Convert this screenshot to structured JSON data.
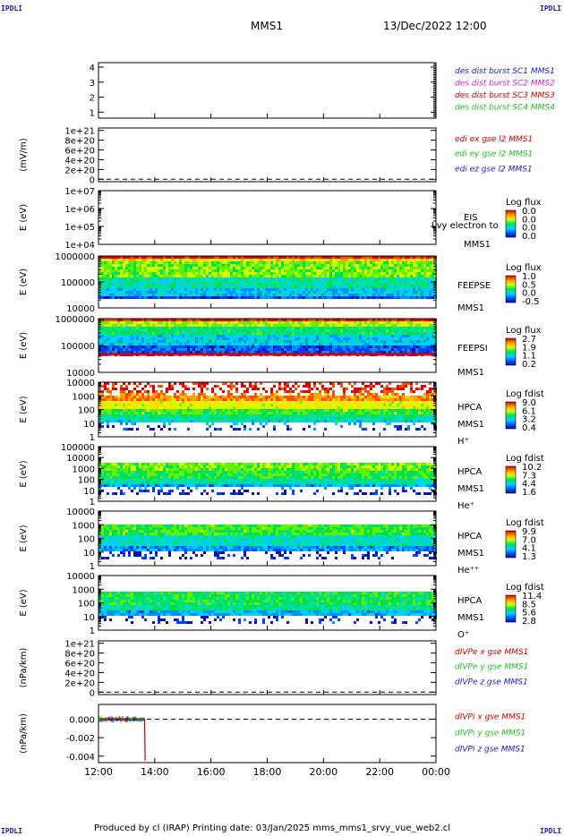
{
  "header": {
    "corner_label": "IPDLI",
    "spacecraft": "MMS1",
    "datetime": "13/Dec/2022 12:00"
  },
  "footer": {
    "text": "Produced by cl (IRAP)   Printing date: 03/Jan/2025   mms_mms1_srvy_vue_web2.cl"
  },
  "chart_data": [
    {
      "type": "line",
      "panel": "des_dist_burst",
      "ylabel": "",
      "yticks": [
        "1",
        "2",
        "3",
        "4"
      ],
      "ylim": [
        0.6,
        4.3
      ],
      "legend": [
        {
          "text": "des dist burst SC1 MMS1",
          "color": "#1a1acc"
        },
        {
          "text": "des dist burst SC2 MMS2",
          "color": "#cc22cc"
        },
        {
          "text": "des dist burst SC3 MMS3",
          "color": "#cc0000"
        },
        {
          "text": "des dist burst SC4 MMS4",
          "color": "#22bb22"
        }
      ],
      "series": []
    },
    {
      "type": "line",
      "panel": "edi_e",
      "ylabel": "(mV/m)",
      "yticks": [
        "0",
        "2e+20",
        "4e+20",
        "6e+20",
        "8e+20",
        "1e+21"
      ],
      "ylim": [
        -0.5,
        10.5
      ],
      "zero_line": true,
      "legend": [
        {
          "text": "edi ex gse l2 MMS1",
          "color": "#cc0000"
        },
        {
          "text": "edi ey gse l2 MMS1",
          "color": "#22bb22"
        },
        {
          "text": "edi ez gse l2 MMS1",
          "color": "#1a1acc"
        }
      ],
      "series": []
    },
    {
      "type": "heatmap",
      "panel": "eis",
      "ylabel": "E (eV)",
      "yticks": [
        "1e+04",
        "1e+05",
        "1e+06",
        "1e+07"
      ],
      "side_labels": [
        "EIS",
        "MMS1"
      ],
      "overlay_text": "Lvy electron to",
      "colorbar": {
        "title": "Log flux",
        "ticks": [
          "0.0",
          "0.0",
          "0.0",
          "0.0"
        ]
      }
    },
    {
      "type": "heatmap",
      "panel": "feepse",
      "ylabel": "E (eV)",
      "yticks": [
        "10000",
        "100000",
        "1000000"
      ],
      "side_labels": [
        "FEEPSE",
        "MMS1"
      ],
      "colorbar": {
        "title": "Log flux",
        "ticks": [
          "1.0",
          "0.5",
          "0.0",
          "-0.5"
        ]
      }
    },
    {
      "type": "heatmap",
      "panel": "feepsi",
      "ylabel": "E (eV)",
      "yticks": [
        "10000",
        "100000",
        "1000000"
      ],
      "side_labels": [
        "FEEPSI",
        "MMS1"
      ],
      "colorbar": {
        "title": "Log flux",
        "ticks": [
          "2.7",
          "1.9",
          "1.1",
          "0.2"
        ]
      }
    },
    {
      "type": "heatmap",
      "panel": "hpca_h",
      "ylabel": "E (eV)",
      "yticks": [
        "1",
        "10",
        "100",
        "1000",
        "10000"
      ],
      "side_labels": [
        "HPCA",
        "MMS1",
        "H⁺"
      ],
      "colorbar": {
        "title": "Log fdist",
        "ticks": [
          "9.0",
          "6.1",
          "3.2",
          "0.4"
        ]
      }
    },
    {
      "type": "heatmap",
      "panel": "hpca_he",
      "ylabel": "E (eV)",
      "yticks": [
        "1",
        "10",
        "100",
        "1000",
        "10000",
        "100000"
      ],
      "side_labels": [
        "HPCA",
        "MMS1",
        "He⁺"
      ],
      "colorbar": {
        "title": "Log fdist",
        "ticks": [
          "10.2",
          "7.3",
          "4.4",
          "1.6"
        ]
      }
    },
    {
      "type": "heatmap",
      "panel": "hpca_hepp",
      "ylabel": "E (eV)",
      "yticks": [
        "1",
        "10",
        "100",
        "1000",
        "10000"
      ],
      "side_labels": [
        "HPCA",
        "MMS1",
        "He⁺⁺"
      ],
      "colorbar": {
        "title": "Log fdist",
        "ticks": [
          "9.9",
          "7.0",
          "4.1",
          "1.3"
        ]
      }
    },
    {
      "type": "heatmap",
      "panel": "hpca_o",
      "ylabel": "E (eV)",
      "yticks": [
        "1",
        "10",
        "100",
        "1000",
        "10000"
      ],
      "side_labels": [
        "HPCA",
        "MMS1",
        "O⁺"
      ],
      "colorbar": {
        "title": "Log fdist",
        "ticks": [
          "11.4",
          "8.5",
          "5.6",
          "2.8"
        ]
      }
    },
    {
      "type": "line",
      "panel": "divpe",
      "ylabel": "(nPa/km)",
      "yticks": [
        "0",
        "2e+20",
        "4e+20",
        "6e+20",
        "8e+20",
        "1e+21"
      ],
      "ylim": [
        -0.5,
        10.5
      ],
      "zero_line": true,
      "legend": [
        {
          "text": "dIVPe x gse MMS1",
          "color": "#cc0000"
        },
        {
          "text": "dIVPe y gse MMS1",
          "color": "#22bb22"
        },
        {
          "text": "dIVPe z gse MMS1",
          "color": "#1a1acc"
        }
      ],
      "series": []
    },
    {
      "type": "line",
      "panel": "divpi",
      "ylabel": "(nPa/km)",
      "yticks": [
        "0.000",
        "-0.002",
        "-0.004"
      ],
      "ytick_values": [
        0.0,
        -0.002,
        -0.004
      ],
      "ylim": [
        -0.0047,
        0.0016
      ],
      "zero_line": true,
      "legend": [
        {
          "text": "dIVPi x gse MMS1",
          "color": "#cc0000"
        },
        {
          "text": "dIVPi y gse MMS1",
          "color": "#22bb22"
        },
        {
          "text": "dIVPi z gse MMS1",
          "color": "#1a1acc"
        }
      ],
      "series": [
        {
          "color": "#cc0000",
          "x": [
            0.0,
            1.6,
            1.64,
            1.66
          ],
          "y": [
            0.0,
            0.0,
            0.0,
            -0.0045
          ]
        },
        {
          "color": "#22bb22",
          "x": [
            0.0,
            1.64
          ],
          "y": [
            0.0001,
            0.0001
          ]
        },
        {
          "color": "#1a1acc",
          "x": [
            0.0,
            1.64
          ],
          "y": [
            -0.0001,
            -0.0001
          ]
        }
      ]
    }
  ],
  "x_axis": {
    "ticks": [
      "12:00",
      "14:00",
      "16:00",
      "18:00",
      "20:00",
      "22:00",
      "00:00"
    ],
    "range_hours": [
      0,
      12
    ]
  }
}
